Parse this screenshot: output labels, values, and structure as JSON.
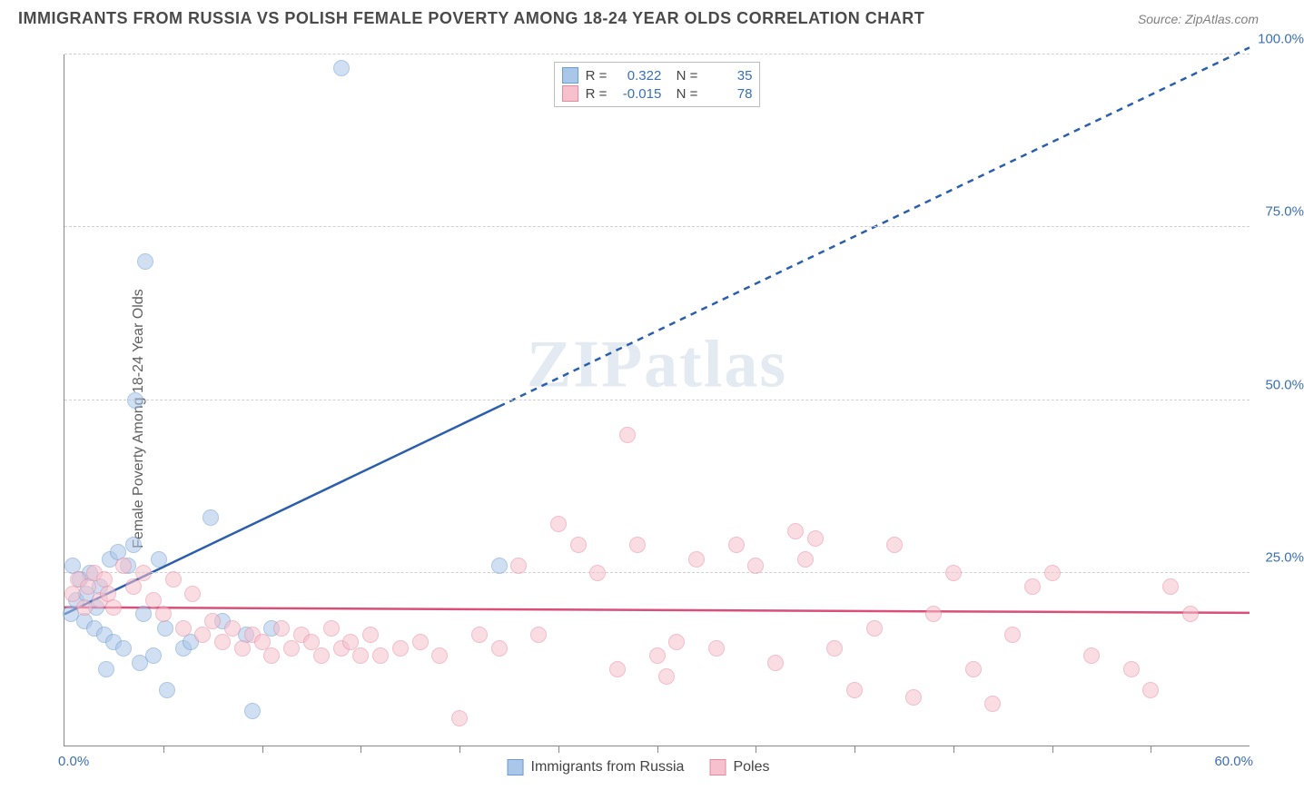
{
  "header": {
    "title": "IMMIGRANTS FROM RUSSIA VS POLISH FEMALE POVERTY AMONG 18-24 YEAR OLDS CORRELATION CHART",
    "source_prefix": "Source: ",
    "source": "ZipAtlas.com"
  },
  "watermark": "ZIPatlas",
  "chart": {
    "type": "scatter",
    "ylabel": "Female Poverty Among 18-24 Year Olds",
    "x": {
      "min": 0,
      "max": 60,
      "min_label": "0.0%",
      "max_label": "60.0%",
      "tick_step": 5
    },
    "y": {
      "min": 0,
      "max": 100,
      "ticks": [
        25,
        50,
        75,
        100
      ],
      "tick_labels": [
        "25.0%",
        "50.0%",
        "75.0%",
        "100.0%"
      ]
    },
    "background_color": "#ffffff",
    "grid_color": "#d0d0d0",
    "axis_color": "#888888",
    "tick_label_color": "#3b6fb6",
    "marker_radius": 9,
    "series": [
      {
        "key": "russia",
        "label": "Immigrants from Russia",
        "fill": "#aac6e8",
        "stroke": "#6b9bd1",
        "fill_opacity": 0.55,
        "stats": {
          "R": "0.322",
          "N": "35"
        },
        "trend": {
          "color": "#2b5fad",
          "width": 2.5,
          "x1": 0,
          "y1": 19,
          "x2": 60,
          "y2": 101,
          "solid_until_x": 22
        },
        "points": [
          [
            0.3,
            19
          ],
          [
            0.6,
            21
          ],
          [
            0.8,
            24
          ],
          [
            1.0,
            18
          ],
          [
            1.1,
            22
          ],
          [
            1.3,
            25
          ],
          [
            1.5,
            17
          ],
          [
            1.6,
            20
          ],
          [
            1.8,
            23
          ],
          [
            2.0,
            16
          ],
          [
            2.3,
            27
          ],
          [
            2.5,
            15
          ],
          [
            2.7,
            28
          ],
          [
            3.0,
            14
          ],
          [
            3.2,
            26
          ],
          [
            3.5,
            29
          ],
          [
            3.8,
            12
          ],
          [
            4.0,
            19
          ],
          [
            4.5,
            13
          ],
          [
            4.8,
            27
          ],
          [
            5.1,
            17
          ],
          [
            6.0,
            14
          ],
          [
            6.4,
            15
          ],
          [
            7.4,
            33
          ],
          [
            8.0,
            18
          ],
          [
            9.2,
            16
          ],
          [
            9.5,
            5
          ],
          [
            10.5,
            17
          ],
          [
            14.0,
            98
          ],
          [
            4.1,
            70
          ],
          [
            3.6,
            50
          ],
          [
            5.2,
            8
          ],
          [
            2.1,
            11
          ],
          [
            0.4,
            26
          ],
          [
            22.0,
            26
          ]
        ]
      },
      {
        "key": "poles",
        "label": "Poles",
        "fill": "#f6c0cd",
        "stroke": "#e68aa2",
        "fill_opacity": 0.55,
        "stats": {
          "R": "-0.015",
          "N": "78"
        },
        "trend": {
          "color": "#d94f78",
          "width": 2.5,
          "x1": 0,
          "y1": 20,
          "x2": 60,
          "y2": 19.2,
          "solid_until_x": 60
        },
        "points": [
          [
            0.4,
            22
          ],
          [
            0.7,
            24
          ],
          [
            1.0,
            20
          ],
          [
            1.2,
            23
          ],
          [
            1.5,
            25
          ],
          [
            1.8,
            21
          ],
          [
            2.0,
            24
          ],
          [
            2.2,
            22
          ],
          [
            2.5,
            20
          ],
          [
            3.0,
            26
          ],
          [
            3.5,
            23
          ],
          [
            4.0,
            25
          ],
          [
            4.5,
            21
          ],
          [
            5.0,
            19
          ],
          [
            5.5,
            24
          ],
          [
            6.0,
            17
          ],
          [
            6.5,
            22
          ],
          [
            7.0,
            16
          ],
          [
            7.5,
            18
          ],
          [
            8.0,
            15
          ],
          [
            8.5,
            17
          ],
          [
            9.0,
            14
          ],
          [
            9.5,
            16
          ],
          [
            10.0,
            15
          ],
          [
            10.5,
            13
          ],
          [
            11.0,
            17
          ],
          [
            11.5,
            14
          ],
          [
            12.0,
            16
          ],
          [
            12.5,
            15
          ],
          [
            13.0,
            13
          ],
          [
            13.5,
            17
          ],
          [
            14.0,
            14
          ],
          [
            14.5,
            15
          ],
          [
            15.0,
            13
          ],
          [
            15.5,
            16
          ],
          [
            16.0,
            13
          ],
          [
            17.0,
            14
          ],
          [
            18.0,
            15
          ],
          [
            19.0,
            13
          ],
          [
            20.0,
            4
          ],
          [
            21.0,
            16
          ],
          [
            22.0,
            14
          ],
          [
            23.0,
            26
          ],
          [
            24.0,
            16
          ],
          [
            25.0,
            32
          ],
          [
            26.0,
            29
          ],
          [
            27.0,
            25
          ],
          [
            28.0,
            11
          ],
          [
            28.5,
            45
          ],
          [
            29.0,
            29
          ],
          [
            30.0,
            13
          ],
          [
            30.5,
            10
          ],
          [
            31.0,
            15
          ],
          [
            32.0,
            27
          ],
          [
            33.0,
            14
          ],
          [
            34.0,
            29
          ],
          [
            35.0,
            26
          ],
          [
            36.0,
            12
          ],
          [
            37.0,
            31
          ],
          [
            37.5,
            27
          ],
          [
            38.0,
            30
          ],
          [
            39.0,
            14
          ],
          [
            40.0,
            8
          ],
          [
            41.0,
            17
          ],
          [
            42.0,
            29
          ],
          [
            43.0,
            7
          ],
          [
            44.0,
            19
          ],
          [
            45.0,
            25
          ],
          [
            46.0,
            11
          ],
          [
            47.0,
            6
          ],
          [
            48.0,
            16
          ],
          [
            49.0,
            23
          ],
          [
            50.0,
            25
          ],
          [
            52.0,
            13
          ],
          [
            54.0,
            11
          ],
          [
            55.0,
            8
          ],
          [
            56.0,
            23
          ],
          [
            57.0,
            19
          ]
        ]
      }
    ],
    "bottom_legend": [
      {
        "swatch_fill": "#aac6e8",
        "swatch_stroke": "#6b9bd1",
        "label": "Immigrants from Russia"
      },
      {
        "swatch_fill": "#f6c0cd",
        "swatch_stroke": "#e68aa2",
        "label": "Poles"
      }
    ]
  }
}
